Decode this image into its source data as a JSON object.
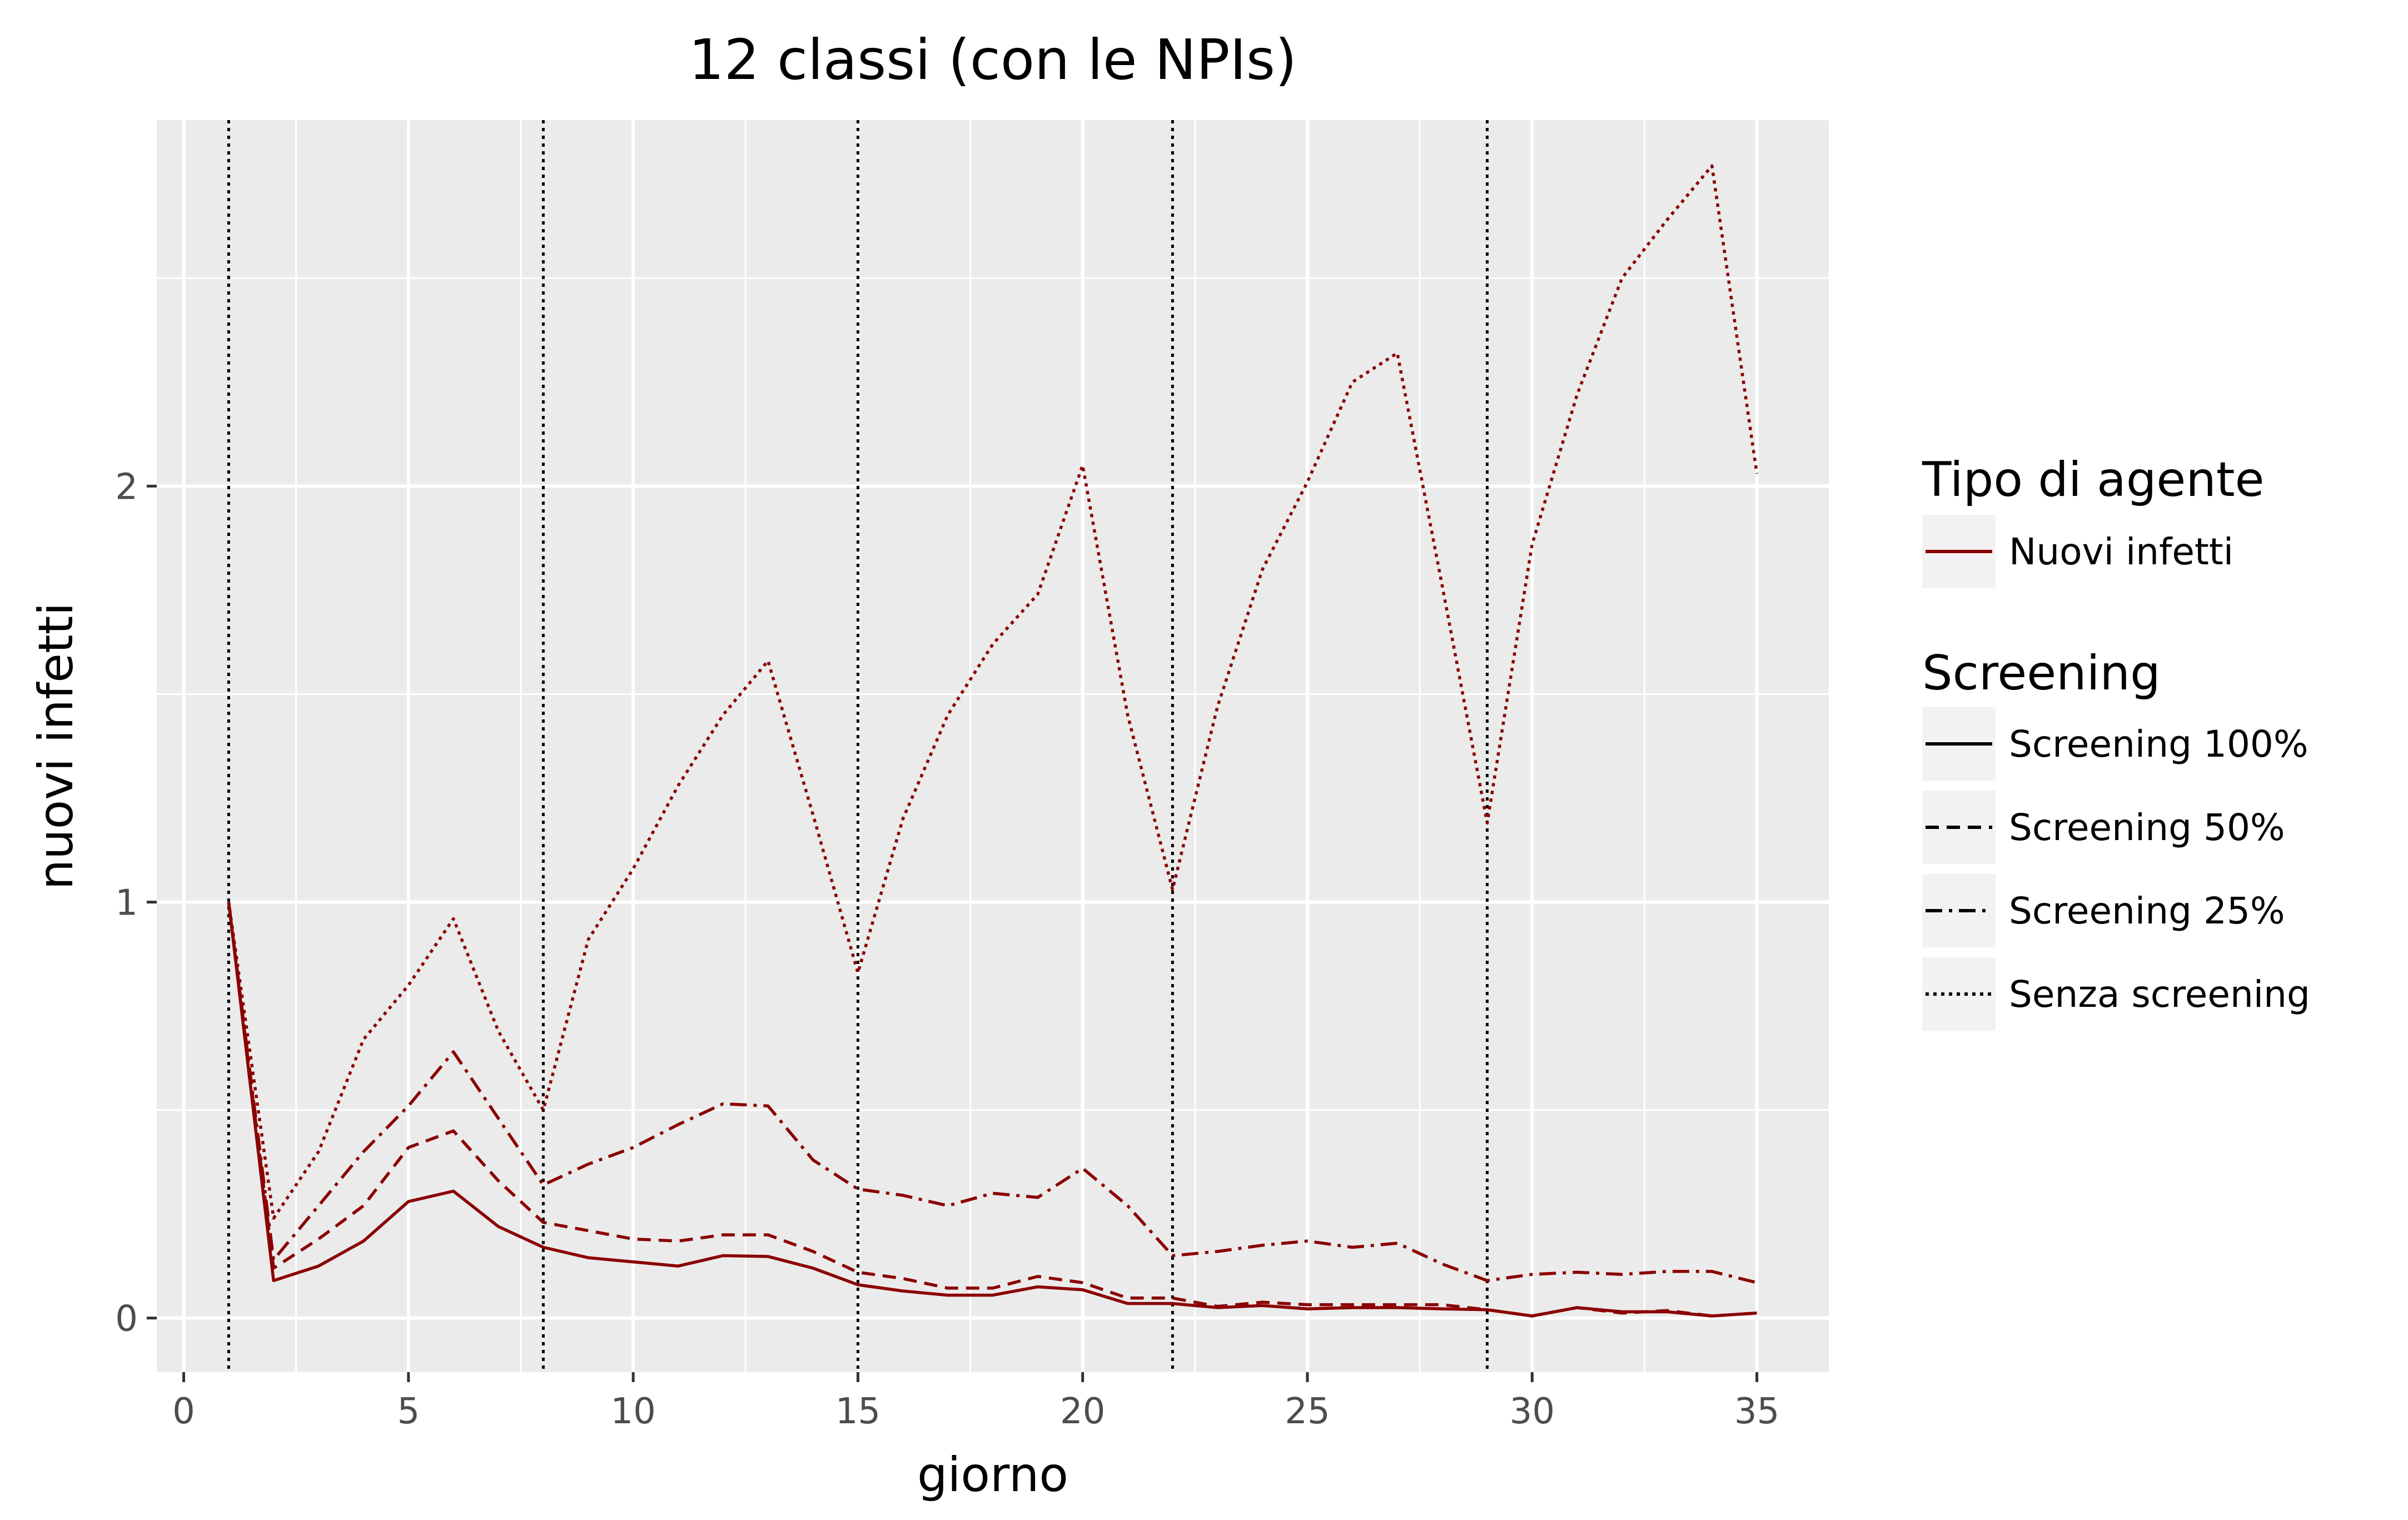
{
  "chart_data": {
    "type": "line",
    "title": "12 classi (con le NPIs)",
    "xlabel": "giorno",
    "ylabel": "nuovi infetti",
    "xlim": [
      -0.6,
      36.6
    ],
    "ylim": [
      -0.13,
      2.88
    ],
    "x_ticks": [
      {
        "value": 0,
        "label": "0"
      },
      {
        "value": 5,
        "label": "5"
      },
      {
        "value": 10,
        "label": "10"
      },
      {
        "value": 15,
        "label": "15"
      },
      {
        "value": 20,
        "label": "20"
      },
      {
        "value": 25,
        "label": "25"
      },
      {
        "value": 30,
        "label": "30"
      },
      {
        "value": 35,
        "label": "35"
      }
    ],
    "y_ticks": [
      {
        "value": 0,
        "label": "0"
      },
      {
        "value": 1,
        "label": "1"
      },
      {
        "value": 2,
        "label": "2"
      }
    ],
    "grid": true,
    "vlines": [
      1,
      8,
      15,
      22,
      29
    ],
    "line_color": "#8B0000",
    "panel_color": "#EBEBEB",
    "legend_position": "right",
    "legend": {
      "color_title": "Tipo di agente",
      "color_entries": [
        {
          "label": "Nuovi infetti",
          "color": "#8B0000"
        }
      ],
      "linetype_title": "Screening",
      "linetype_entries": [
        {
          "label": "Screening 100%",
          "dash": "solid"
        },
        {
          "label": "Screening 50%",
          "dash": "dashed"
        },
        {
          "label": "Screening 25%",
          "dash": "dashdot"
        },
        {
          "label": "Senza screening",
          "dash": "dotted"
        }
      ]
    },
    "x": [
      1,
      2,
      3,
      4,
      5,
      6,
      7,
      8,
      9,
      10,
      11,
      12,
      13,
      14,
      15,
      16,
      17,
      18,
      19,
      20,
      21,
      22,
      23,
      24,
      25,
      26,
      27,
      28,
      29,
      30,
      31,
      32,
      33,
      34,
      35
    ],
    "series": [
      {
        "name": "Screening 100%",
        "dash": "solid",
        "values": [
          1.0,
          0.09,
          0.125,
          0.185,
          0.28,
          0.305,
          0.22,
          0.17,
          0.145,
          0.135,
          0.125,
          0.15,
          0.148,
          0.12,
          0.08,
          0.065,
          0.055,
          0.055,
          0.075,
          0.068,
          0.035,
          0.035,
          0.025,
          0.03,
          0.022,
          0.025,
          0.025,
          0.022,
          0.02,
          0.005,
          0.025,
          0.015,
          0.015,
          0.005,
          0.012
        ]
      },
      {
        "name": "Screening 50%",
        "dash": "dashed",
        "values": [
          1.0,
          0.12,
          0.19,
          0.27,
          0.41,
          0.45,
          0.33,
          0.23,
          0.21,
          0.19,
          0.185,
          0.2,
          0.2,
          0.16,
          0.11,
          0.095,
          0.072,
          0.072,
          0.1,
          0.085,
          0.048,
          0.048,
          0.028,
          0.038,
          0.032,
          0.032,
          0.032,
          0.032,
          0.02,
          0.005,
          0.025,
          0.012,
          0.018,
          0.005,
          0.012
        ]
      },
      {
        "name": "Screening 25%",
        "dash": "dashdot",
        "values": [
          1.0,
          0.14,
          0.27,
          0.4,
          0.51,
          0.64,
          0.48,
          0.32,
          0.37,
          0.41,
          0.465,
          0.515,
          0.51,
          0.38,
          0.31,
          0.295,
          0.27,
          0.3,
          0.29,
          0.36,
          0.27,
          0.15,
          0.16,
          0.175,
          0.185,
          0.17,
          0.18,
          0.13,
          0.09,
          0.105,
          0.11,
          0.105,
          0.112,
          0.112,
          0.085
        ]
      },
      {
        "name": "Senza screening",
        "dash": "dotted",
        "values": [
          1.0,
          0.24,
          0.4,
          0.67,
          0.8,
          0.96,
          0.69,
          0.5,
          0.91,
          1.08,
          1.28,
          1.45,
          1.58,
          1.21,
          0.83,
          1.2,
          1.45,
          1.62,
          1.74,
          2.05,
          1.45,
          1.03,
          1.47,
          1.8,
          2.01,
          2.25,
          2.32,
          1.76,
          1.19,
          1.86,
          2.22,
          2.5,
          2.64,
          2.77,
          2.03
        ]
      }
    ]
  }
}
